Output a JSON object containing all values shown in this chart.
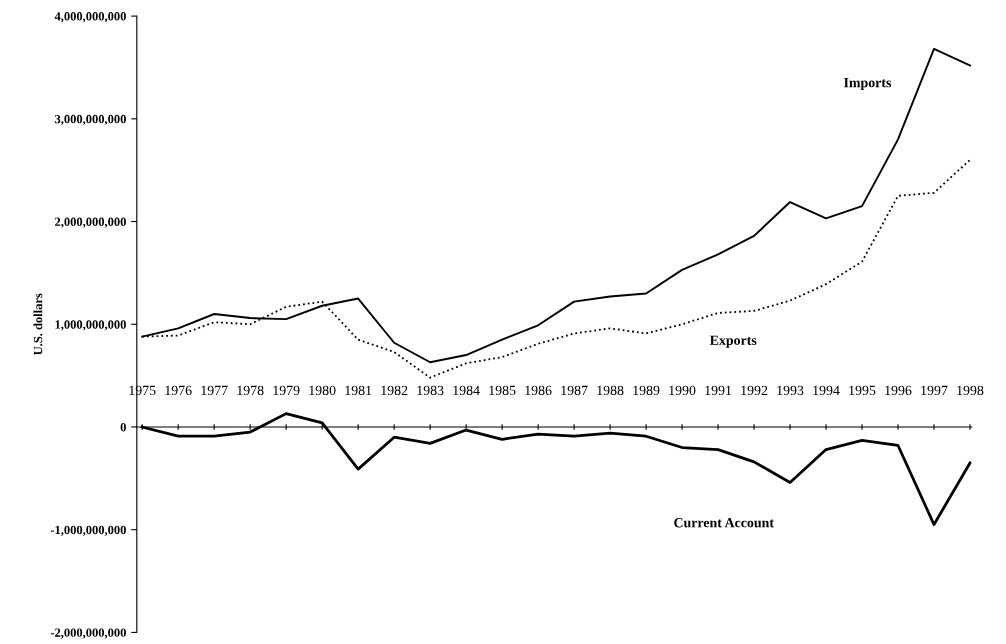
{
  "chart_data": {
    "type": "line",
    "ylabel": "U.S. dollars",
    "categories": [
      "1975",
      "1976",
      "1977",
      "1978",
      "1979",
      "1980",
      "1981",
      "1982",
      "1983",
      "1984",
      "1985",
      "1986",
      "1987",
      "1988",
      "1989",
      "1990",
      "1991",
      "1992",
      "1993",
      "1994",
      "1995",
      "1996",
      "1997",
      "1998"
    ],
    "series": [
      {
        "name": "Imports",
        "color": "#000000",
        "line_style": "solid",
        "values": [
          880000000,
          960000000,
          1100000000,
          1060000000,
          1050000000,
          1180000000,
          1250000000,
          820000000,
          630000000,
          700000000,
          850000000,
          990000000,
          1220000000,
          1270000000,
          1300000000,
          1530000000,
          1680000000,
          1860000000,
          2190000000,
          2030000000,
          2150000000,
          2800000000,
          3680000000,
          3520000000
        ]
      },
      {
        "name": "Exports",
        "color": "#000000",
        "line_style": "dotted",
        "values": [
          880000000,
          890000000,
          1020000000,
          1000000000,
          1170000000,
          1220000000,
          850000000,
          730000000,
          480000000,
          620000000,
          680000000,
          810000000,
          910000000,
          960000000,
          910000000,
          1000000000,
          1110000000,
          1130000000,
          1230000000,
          1390000000,
          1610000000,
          2250000000,
          2280000000,
          2600000000
        ]
      },
      {
        "name": "Current Account",
        "color": "#000000",
        "line_style": "solid",
        "values": [
          0,
          -90000000,
          -90000000,
          -50000000,
          130000000,
          40000000,
          -410000000,
          -100000000,
          -160000000,
          -30000000,
          -120000000,
          -70000000,
          -90000000,
          -60000000,
          -90000000,
          -200000000,
          -220000000,
          -340000000,
          -540000000,
          -220000000,
          -130000000,
          -180000000,
          -950000000,
          -350000000
        ]
      }
    ],
    "ylim": [
      -2000000000,
      4000000000
    ],
    "yticks": [
      {
        "value": -2000000000,
        "label": "-2,000,000,000"
      },
      {
        "value": -1000000000,
        "label": "-1,000,000,000"
      },
      {
        "value": 0,
        "label": "0"
      },
      {
        "value": 1000000000,
        "label": "1,000,000,000"
      },
      {
        "value": 2000000000,
        "label": "2,000,000,000"
      },
      {
        "value": 3000000000,
        "label": "3,000,000,000"
      },
      {
        "value": 4000000000,
        "label": "4,000,000,000"
      }
    ],
    "grid": false,
    "legend": false,
    "marker": "none"
  }
}
